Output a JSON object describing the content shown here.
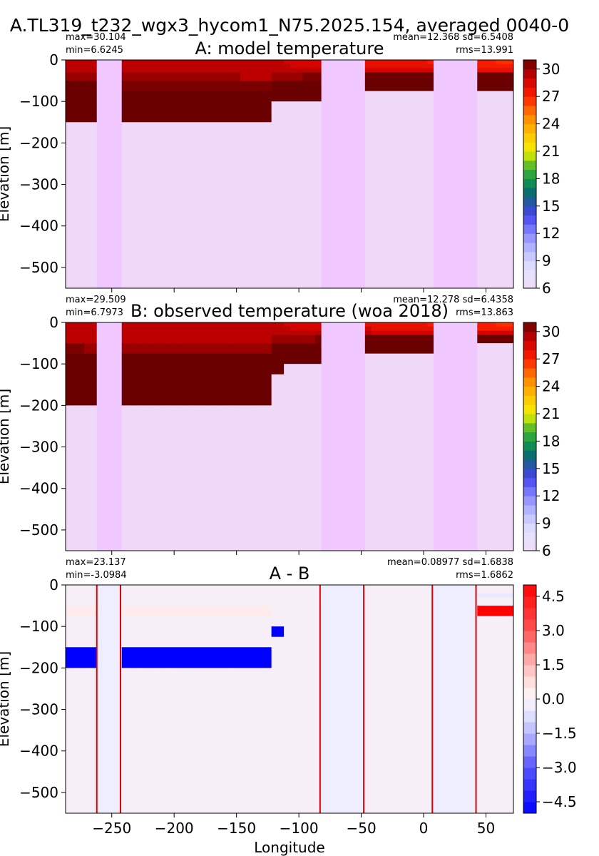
{
  "suptitle": "A.TL319_t232_wgx3_hycom1_N75.2025.154, averaged 0040-0",
  "x_label": "Longitude",
  "y_label": "Elevation [m]",
  "chart_data": [
    {
      "type": "heatmap",
      "title": "A: model temperature",
      "stats": {
        "max": "max=30.104",
        "min": "min=6.6245",
        "mean_sd": "mean=12.368 sd=6.5408",
        "rms": "rms=13.991"
      },
      "xlim": [
        -287,
        72
      ],
      "ylim": [
        -550,
        0
      ],
      "yticks": [
        0,
        -100,
        -200,
        -300,
        -400,
        -500
      ],
      "xticks": [
        -250,
        -200,
        -150,
        -100,
        -50,
        0,
        50
      ],
      "colorbar": {
        "min": 6,
        "max": 31,
        "ticks": [
          30,
          27,
          24,
          21,
          18,
          15,
          12,
          9,
          6
        ]
      },
      "land": [
        [
          -262,
          -243
        ],
        [
          -83,
          -48
        ],
        [
          7,
          42
        ]
      ],
      "thermocline": {
        "west_deep": -150,
        "mid_deep": -110,
        "east_shallow": -80
      }
    },
    {
      "type": "heatmap",
      "title": "B: observed temperature (woa 2018)",
      "stats": {
        "max": "max=29.509",
        "min": "min=6.7973",
        "mean_sd": "mean=12.278 sd=6.4358",
        "rms": "rms=13.863"
      },
      "xlim": [
        -287,
        72
      ],
      "ylim": [
        -550,
        0
      ],
      "yticks": [
        0,
        -100,
        -200,
        -300,
        -400,
        -500
      ],
      "xticks": [
        -250,
        -200,
        -150,
        -100,
        -50,
        0,
        50
      ],
      "colorbar": {
        "min": 6,
        "max": 31,
        "ticks": [
          30,
          27,
          24,
          21,
          18,
          15,
          12,
          9,
          6
        ]
      },
      "land": [
        [
          -262,
          -243
        ],
        [
          -83,
          -48
        ],
        [
          7,
          42
        ]
      ],
      "thermocline": {
        "west_deep": -175,
        "mid_deep": -120,
        "east_shallow": -75
      }
    },
    {
      "type": "heatmap",
      "title": "A - B",
      "stats": {
        "max": "max=23.137",
        "min": "min=-3.0984",
        "mean_sd": "mean=0.08977 sd=1.6838",
        "rms": "rms=1.6862"
      },
      "xlim": [
        -287,
        72
      ],
      "ylim": [
        -550,
        0
      ],
      "yticks": [
        0,
        -100,
        -200,
        -300,
        -400,
        -500
      ],
      "xticks": [
        -250,
        -200,
        -150,
        -100,
        -50,
        0,
        50
      ],
      "colorbar": {
        "min": -5,
        "max": 5,
        "ticks": [
          4.5,
          3.0,
          1.5,
          0.0,
          -1.5,
          -3.0,
          -4.5
        ]
      },
      "land": [
        [
          -262,
          -243
        ],
        [
          -83,
          -48
        ],
        [
          7,
          42
        ]
      ]
    }
  ]
}
